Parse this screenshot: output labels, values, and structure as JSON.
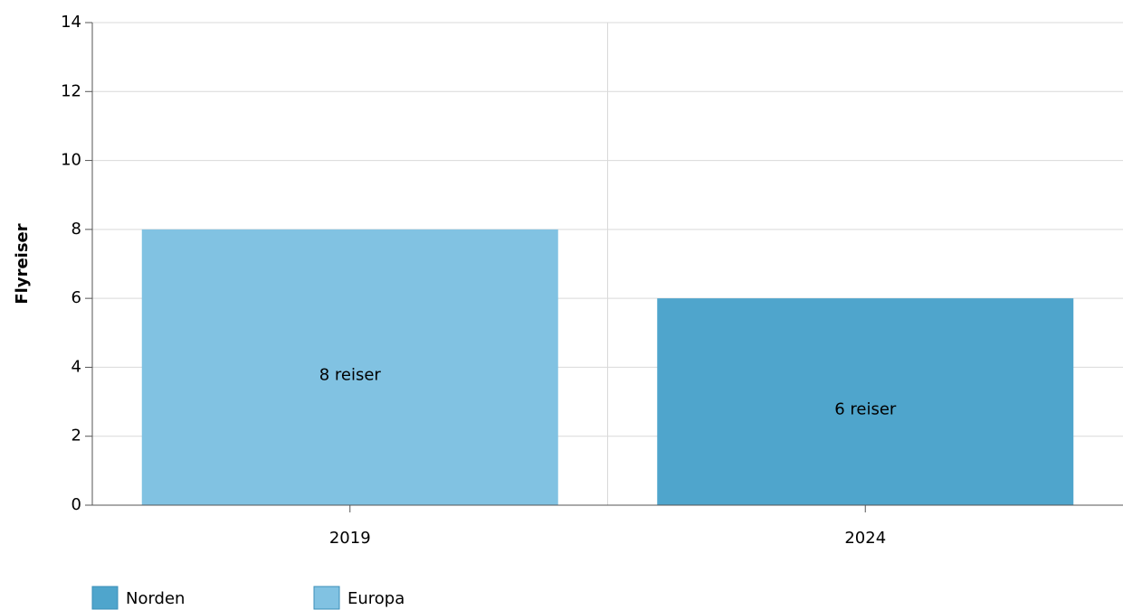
{
  "chart_data": {
    "type": "bar",
    "stacked": true,
    "y_label": "Flyreiser",
    "categories": [
      "2019",
      "2024"
    ],
    "series": [
      {
        "name": "Norden",
        "color": "#4fa5cc",
        "values": [
          null,
          6
        ],
        "value_labels": [
          null,
          "6 reiser"
        ]
      },
      {
        "name": "Europa",
        "color": "#81c2e2",
        "values": [
          8,
          null
        ],
        "value_labels": [
          "8 reiser",
          null
        ]
      }
    ],
    "ylim": [
      0,
      14
    ],
    "yticks": [
      0,
      2,
      4,
      6,
      8,
      10,
      12,
      14
    ],
    "grid": true,
    "legend": "bottom"
  }
}
